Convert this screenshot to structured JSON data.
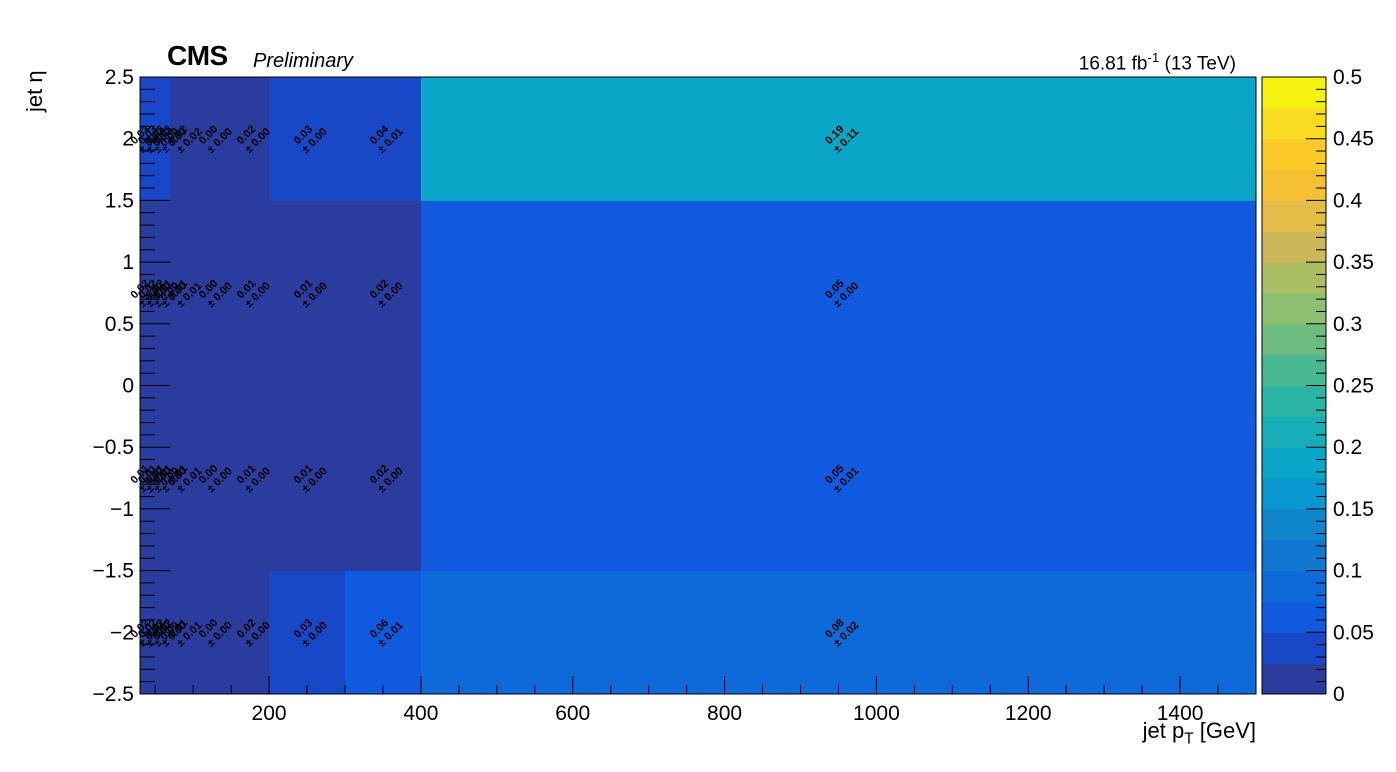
{
  "header": {
    "experiment": "CMS",
    "status": "Preliminary",
    "lumi_value": "16.81 fb",
    "lumi_exp": "-1",
    "energy": " (13 TeV)"
  },
  "axes": {
    "x_label_main": "jet p",
    "x_label_sub": "T",
    "x_label_unit": " [GeV]",
    "y_label": "jet η"
  },
  "chart_data": {
    "type": "heatmap",
    "xlabel": "jet p_T [GeV]",
    "ylabel": "jet η",
    "xlim": [
      30,
      1500
    ],
    "ylim": [
      -2.5,
      2.5
    ],
    "zlim": [
      0,
      0.5
    ],
    "x_bin_edges": [
      30,
      40,
      50,
      60,
      70,
      100,
      150,
      200,
      300,
      400,
      1500
    ],
    "y_bin_edges": [
      -2.5,
      -1.5,
      0,
      1.5,
      2.5
    ],
    "x_ticks": [
      200,
      400,
      600,
      800,
      1000,
      1200,
      1400
    ],
    "y_ticks": [
      -2.5,
      -2,
      -1.5,
      -1,
      -0.5,
      0,
      0.5,
      1,
      1.5,
      2,
      2.5
    ],
    "z_ticks": [
      0,
      0.05,
      0.1,
      0.15,
      0.2,
      0.25,
      0.3,
      0.35,
      0.4,
      0.45,
      0.5
    ],
    "values": [
      [
        0.02,
        0.02,
        0.02,
        0.02,
        0.01,
        0.0,
        0.02,
        0.03,
        0.06,
        0.08
      ],
      [
        0.01,
        0.01,
        0.01,
        0.01,
        0.01,
        0.0,
        0.01,
        0.01,
        0.02,
        0.05
      ],
      [
        0.02,
        0.02,
        0.02,
        0.01,
        0.01,
        0.0,
        0.01,
        0.01,
        0.02,
        0.05
      ],
      [
        0.03,
        0.03,
        0.03,
        0.03,
        0.02,
        0.0,
        0.02,
        0.03,
        0.04,
        0.19
      ]
    ],
    "errors": [
      [
        0.0,
        0.0,
        0.0,
        0.0,
        0.01,
        0.0,
        0.0,
        0.0,
        0.01,
        0.02
      ],
      [
        0.0,
        0.0,
        0.0,
        0.0,
        0.01,
        0.0,
        0.0,
        0.0,
        0.0,
        0.01
      ],
      [
        0.0,
        0.0,
        0.0,
        0.0,
        0.01,
        0.0,
        0.0,
        0.0,
        0.0,
        0.0
      ],
      [
        0.0,
        0.0,
        0.0,
        0.0,
        0.02,
        0.0,
        0.0,
        0.0,
        0.01,
        0.11
      ]
    ],
    "palette": [
      "#2a3c9e",
      "#1848c8",
      "#105ae0",
      "#0e6ad8",
      "#1078d0",
      "#0f86cc",
      "#0a96d0",
      "#09a6c8",
      "#18aeb8",
      "#2ab4a4",
      "#48b890",
      "#6cbc80",
      "#8cc070",
      "#acbe62",
      "#ccb858",
      "#e4bc48",
      "#f6c034",
      "#fccb2a",
      "#f8dc22",
      "#f6f210"
    ]
  }
}
